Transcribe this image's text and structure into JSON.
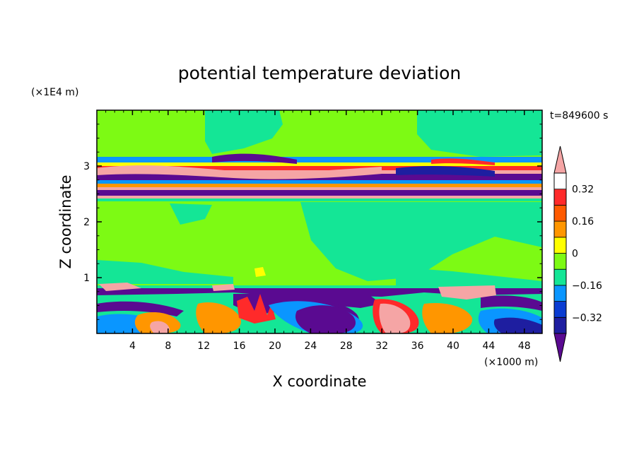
{
  "chart_data": {
    "type": "heatmap",
    "title": "potential temperature deviation",
    "time_label": "t=849600 s",
    "xlabel": "X coordinate",
    "ylabel": "Z coordinate",
    "x_unit": "(×1000 m)",
    "y_unit": "(×1E4 m)",
    "xlim": [
      0,
      50
    ],
    "ylim": [
      0,
      4
    ],
    "x_ticks": [
      4,
      8,
      12,
      16,
      20,
      24,
      28,
      32,
      36,
      40,
      44,
      48
    ],
    "y_ticks": [
      1,
      2,
      3
    ],
    "colorbar": {
      "levels": [
        -0.48,
        -0.4,
        -0.32,
        -0.24,
        -0.16,
        -0.08,
        0,
        0.08,
        0.16,
        0.24,
        0.32,
        0.4,
        0.48
      ],
      "colors": [
        "#5a0a91",
        "#1e1ea0",
        "#0a3cd2",
        "#0a96ff",
        "#14e696",
        "#7dfa14",
        "#ffff00",
        "#ff9600",
        "#ff5a00",
        "#ff2a2a",
        "#f5a5a5"
      ],
      "tick_labels": [
        "0.32",
        "0.16",
        "0",
        "−0.16",
        "−0.32"
      ],
      "tick_values": [
        0.32,
        0.16,
        0,
        -0.16,
        -0.32
      ],
      "extend": "both"
    }
  }
}
